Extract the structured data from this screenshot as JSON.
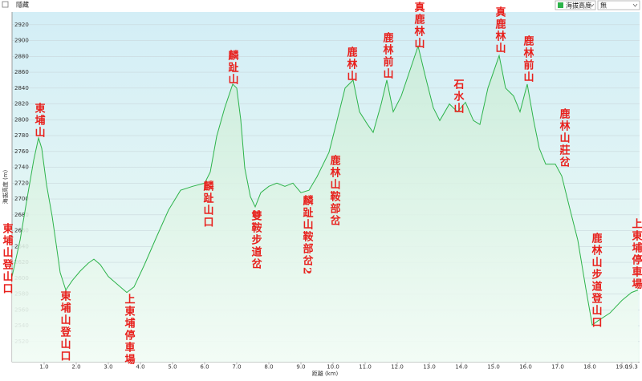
{
  "ui": {
    "hide_label": "隱藏",
    "overlay": "無"
  },
  "chart_data": {
    "type": "area",
    "xlabel": "距離 (km)",
    "ylabel": "海拔高度 (m)",
    "x": [
      0,
      0.25,
      0.5,
      0.675,
      0.825,
      0.925,
      1.075,
      1.25,
      1.375,
      1.5,
      1.675,
      1.875,
      2.125,
      2.375,
      2.55,
      2.75,
      3.0,
      3.375,
      3.575,
      3.8,
      4.125,
      4.5,
      4.875,
      5.25,
      5.625,
      6.0,
      6.175,
      6.375,
      6.625,
      6.875,
      7.0,
      7.125,
      7.25,
      7.425,
      7.575,
      7.75,
      8.0,
      8.25,
      8.5,
      8.75,
      9.0,
      9.25,
      9.5,
      9.875,
      10.125,
      10.375,
      10.625,
      10.825,
      11.075,
      11.25,
      11.5,
      11.675,
      11.875,
      12.125,
      12.375,
      12.65,
      12.875,
      13.125,
      13.325,
      13.625,
      13.875,
      14.125,
      14.375,
      14.575,
      14.825,
      15.175,
      15.375,
      15.625,
      15.825,
      16.05,
      16.25,
      16.425,
      16.625,
      16.925,
      17.125,
      17.375,
      17.625,
      17.875,
      18.075,
      18.25,
      18.625,
      19.0,
      19.3,
      19.5
    ],
    "series": [
      {
        "name": "海拔高度",
        "color": "#2db34a",
        "values": [
          2602,
          2648,
          2708,
          2749,
          2777,
          2764,
          2718,
          2678,
          2643,
          2607,
          2585,
          2597,
          2609,
          2619,
          2624,
          2617,
          2602,
          2589,
          2582,
          2589,
          2617,
          2652,
          2686,
          2711,
          2716,
          2720,
          2734,
          2779,
          2815,
          2845,
          2840,
          2800,
          2739,
          2703,
          2690,
          2708,
          2716,
          2720,
          2716,
          2720,
          2708,
          2711,
          2728,
          2759,
          2799,
          2840,
          2850,
          2810,
          2794,
          2784,
          2820,
          2850,
          2810,
          2830,
          2860,
          2893,
          2855,
          2815,
          2799,
          2820,
          2810,
          2822,
          2799,
          2794,
          2840,
          2881,
          2840,
          2830,
          2810,
          2845,
          2799,
          2764,
          2744,
          2744,
          2729,
          2688,
          2648,
          2587,
          2541,
          2546,
          2556,
          2572,
          2582,
          2585
        ]
      }
    ],
    "xlim": [
      0,
      19.55
    ],
    "ylim": [
      2494,
      2936
    ],
    "xticks": [
      {
        "value": 1,
        "label": "1.0"
      },
      {
        "value": 2,
        "label": "2.0"
      },
      {
        "value": 3,
        "label": "3.0"
      },
      {
        "value": 4,
        "label": "4.0"
      },
      {
        "value": 5,
        "label": "5.0"
      },
      {
        "value": 6,
        "label": "6.0"
      },
      {
        "value": 7,
        "label": "7.0"
      },
      {
        "value": 8,
        "label": "8.0"
      },
      {
        "value": 9,
        "label": "9.0"
      },
      {
        "value": 10,
        "label": "10.0"
      },
      {
        "value": 11,
        "label": "11.0"
      },
      {
        "value": 12,
        "label": "12.0"
      },
      {
        "value": 13,
        "label": "13.0"
      },
      {
        "value": 14,
        "label": "14.0"
      },
      {
        "value": 15,
        "label": "15.0"
      },
      {
        "value": 16,
        "label": "16.0"
      },
      {
        "value": 17,
        "label": "17.0"
      },
      {
        "value": 18,
        "label": "18.0"
      },
      {
        "value": 19,
        "label": "19.0"
      },
      {
        "value": 19.3,
        "label": "19.3"
      }
    ],
    "yticks": [
      2520,
      2540,
      2560,
      2580,
      2600,
      2620,
      2640,
      2660,
      2680,
      2700,
      2720,
      2740,
      2760,
      2780,
      2800,
      2820,
      2840,
      2860,
      2880,
      2900,
      2920
    ],
    "grid": true,
    "annotations": [
      "東埔山登山口",
      "東埔山",
      "東埔山登山口",
      "上東埔停車場",
      "麟趾山",
      "麟趾山口",
      "雙鞍步道岔",
      "麟趾山鞍部岔2",
      "鹿林山鞍部岔",
      "鹿林山",
      "鹿林前山",
      "真鹿林山",
      "石水山",
      "真鹿林山",
      "鹿林前山",
      "鹿林山莊岔",
      "鹿林山步道登山口",
      "上東埔停車場"
    ]
  }
}
